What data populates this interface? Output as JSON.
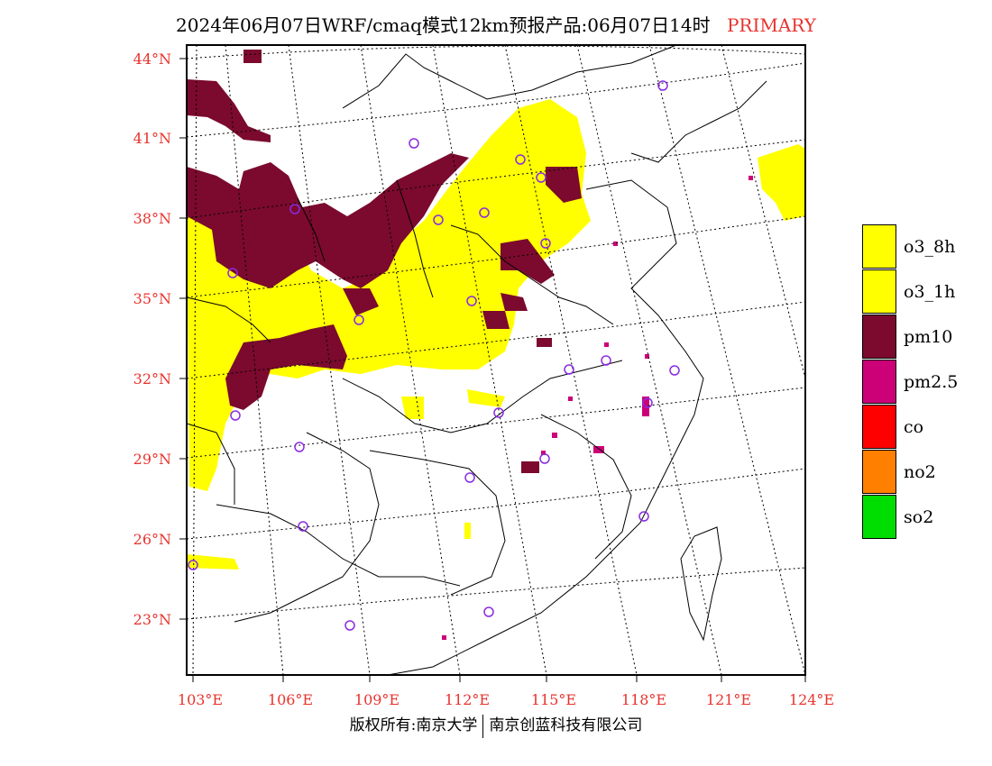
{
  "title": {
    "text": "2024年06月07日WRF/cmaq模式12km预报产品:06月07日14时",
    "tag": "PRIMARY",
    "tag_color": "#e8332e"
  },
  "map": {
    "lat_labels": [
      "44°N",
      "41°N",
      "38°N",
      "35°N",
      "32°N",
      "29°N",
      "26°N",
      "23°N"
    ],
    "lon_labels": [
      "103°E",
      "106°E",
      "109°E",
      "112°E",
      "115°E",
      "118°E",
      "121°E",
      "124°E"
    ],
    "label_color": "#e8332e"
  },
  "legend": {
    "items": [
      {
        "label": "o3_8h",
        "color": "#ffff00"
      },
      {
        "label": "o3_1h",
        "color": "#ffff00"
      },
      {
        "label": "pm10",
        "color": "#7b0a2e"
      },
      {
        "label": "pm2.5",
        "color": "#cc0077"
      },
      {
        "label": "co",
        "color": "#ff0000"
      },
      {
        "label": "no2",
        "color": "#ff8000"
      },
      {
        "label": "so2",
        "color": "#00dd00"
      }
    ]
  },
  "footer": {
    "left": "版权所有:南京大学",
    "right": "南京创蓝科技有限公司"
  },
  "colors": {
    "o3": "#ffff00",
    "pm10": "#7b0a2e",
    "pm25": "#cc0077",
    "station_ring": "#8a2be2"
  }
}
